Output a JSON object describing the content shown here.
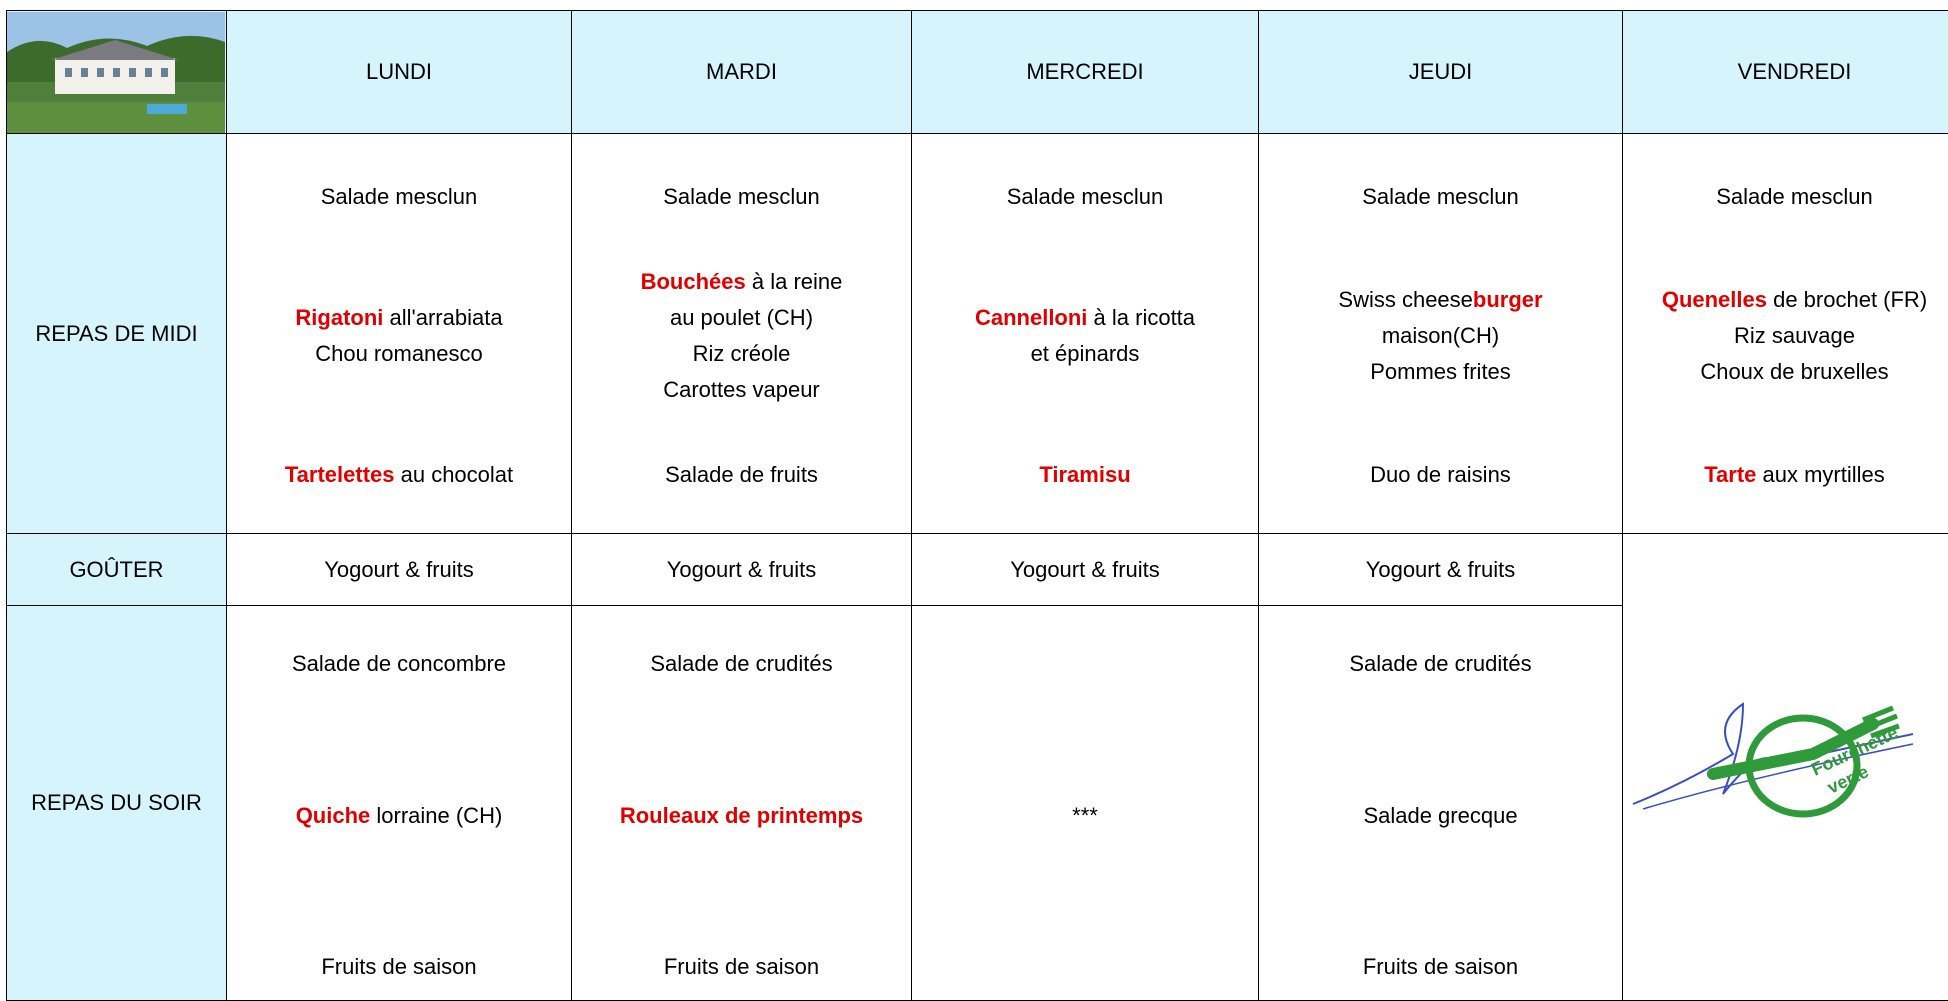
{
  "header": {
    "days": [
      "LUNDI",
      "MARDI",
      "MERCREDI",
      "JEUDI",
      "VENDREDI"
    ]
  },
  "rows": [
    {
      "label": "REPAS DE MIDI",
      "cells": [
        [
          [
            [
              {
                "text": "Salade mesclun"
              }
            ]
          ],
          [
            [
              {
                "text": "Rigatoni",
                "red": true
              },
              {
                "text": " all'arrabiata"
              }
            ],
            [
              {
                "text": "Chou romanesco"
              }
            ]
          ],
          [
            [
              {
                "text": "Tartelettes",
                "red": true
              },
              {
                "text": " au chocolat"
              }
            ]
          ]
        ],
        [
          [
            [
              {
                "text": "Salade mesclun"
              }
            ]
          ],
          [
            [
              {
                "text": "Bouchées",
                "red": true
              },
              {
                "text": " à la reine"
              }
            ],
            [
              {
                "text": "au poulet (CH)"
              }
            ],
            [
              {
                "text": "Riz créole"
              }
            ],
            [
              {
                "text": "Carottes vapeur"
              }
            ]
          ],
          [
            [
              {
                "text": "Salade de fruits"
              }
            ]
          ]
        ],
        [
          [
            [
              {
                "text": "Salade mesclun"
              }
            ]
          ],
          [
            [
              {
                "text": "Cannelloni",
                "red": true
              },
              {
                "text": " à la ricotta"
              }
            ],
            [
              {
                "text": "et épinards"
              }
            ]
          ],
          [
            [
              {
                "text": "Tiramisu",
                "red": true
              }
            ]
          ]
        ],
        [
          [
            [
              {
                "text": "Salade mesclun"
              }
            ]
          ],
          [
            [
              {
                "text": "Swiss cheese"
              },
              {
                "text": "burger",
                "red": true
              }
            ],
            [
              {
                "text": "maison(CH)"
              }
            ],
            [
              {
                "text": "Pommes frites"
              }
            ]
          ],
          [
            [
              {
                "text": "Duo de raisins"
              }
            ]
          ]
        ],
        [
          [
            [
              {
                "text": "Salade mesclun"
              }
            ]
          ],
          [
            [
              {
                "text": "Quenelles",
                "red": true
              },
              {
                "text": " de brochet (FR)"
              }
            ],
            [
              {
                "text": "Riz sauvage"
              }
            ],
            [
              {
                "text": "Choux de bruxelles"
              }
            ]
          ],
          [
            [
              {
                "text": "Tarte",
                "red": true
              },
              {
                "text": " aux myrtilles"
              }
            ]
          ]
        ]
      ]
    },
    {
      "label": "GOÛTER",
      "cells": [
        [
          [
            [
              {
                "text": "Yogourt & fruits"
              }
            ]
          ]
        ],
        [
          [
            [
              {
                "text": "Yogourt & fruits"
              }
            ]
          ]
        ],
        [
          [
            [
              {
                "text": "Yogourt & fruits"
              }
            ]
          ]
        ],
        [
          [
            [
              {
                "text": "Yogourt & fruits"
              }
            ]
          ]
        ]
      ]
    },
    {
      "label": "REPAS DU SOIR",
      "cells": [
        [
          [
            [
              {
                "text": "Salade de concombre"
              }
            ]
          ],
          [
            [
              {
                "text": "Quiche",
                "red": true
              },
              {
                "text": " lorraine (CH)"
              }
            ]
          ],
          [
            [
              {
                "text": "Fruits de saison"
              }
            ]
          ]
        ],
        [
          [
            [
              {
                "text": "Salade de crudités"
              }
            ]
          ],
          [
            [
              {
                "text": "Rouleaux de printemps",
                "red": true
              }
            ]
          ],
          [
            [
              {
                "text": "Fruits de saison"
              }
            ]
          ]
        ],
        [
          [
            [
              {
                "text": "***"
              }
            ]
          ]
        ],
        [
          [
            [
              {
                "text": "Salade de crudités"
              }
            ]
          ],
          [
            [
              {
                "text": "Salade grecque"
              }
            ]
          ],
          [
            [
              {
                "text": "Fruits de saison"
              }
            ]
          ]
        ]
      ]
    }
  ],
  "logo": {
    "text": [
      "Fourchette",
      "verte"
    ]
  }
}
